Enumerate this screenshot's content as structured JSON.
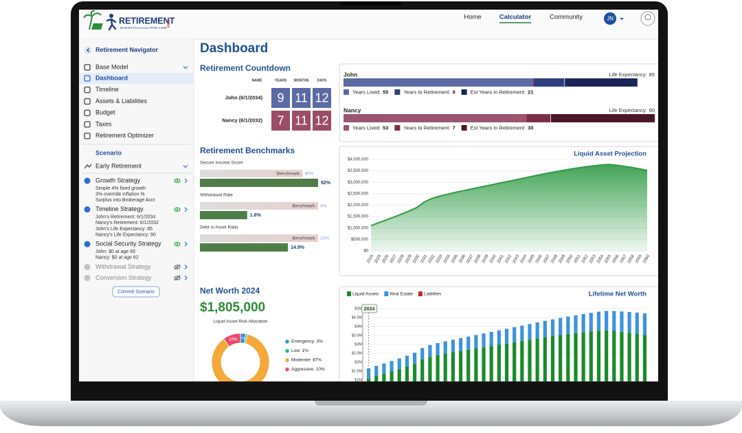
{
  "header": {
    "logo": {
      "name": "RETIREMENT",
      "domain": "BUDGETCALCULATOR.COM",
      "badge": "PRO"
    },
    "nav": [
      "Home",
      "Calculator",
      "Community"
    ],
    "user_initials": "JN"
  },
  "sidebar": {
    "title": "Retirement Navigator",
    "base_model": "Base Model",
    "menu": [
      "Dashboard",
      "Timeline",
      "Assets & Liabilities",
      "Budget",
      "Taxes",
      "Retirement Optimizer"
    ],
    "scenario_heading": "Scenario",
    "scenario": "Early Retirement",
    "strategies": [
      {
        "name": "Growth Strategy",
        "enabled": true,
        "details": [
          "Simple 4% fixed growth",
          "3% override inflation %",
          "Surplus into Brokerage Acct"
        ]
      },
      {
        "name": "Timeline Strategy",
        "enabled": true,
        "details": [
          "John's Retirement: 6/1/2034",
          "Nancy's Retirement: 6/1/2032",
          "John's Life Expectancy: 85",
          "Nancy's Life Expectancy: 90"
        ]
      },
      {
        "name": "Social Security Strategy",
        "enabled": true,
        "details": [
          "John: $0 at age 65",
          "Nancy: $0 at age 62"
        ]
      },
      {
        "name": "Withdrawal Strategy",
        "enabled": false
      },
      {
        "name": "Conversion Strategy",
        "enabled": false
      }
    ],
    "button": "Commit Scenario"
  },
  "dashboard": {
    "title": "Dashboard",
    "countdown": {
      "title": "Retirement Countdown",
      "headers": [
        "NAME",
        "YEARS",
        "MONTHS",
        "DAYS"
      ],
      "rows": [
        {
          "name": "John (6/1/2034)",
          "years": 9,
          "months": 11,
          "days": 12,
          "color": "#5b6aa3"
        },
        {
          "name": "Nancy (6/1/2032)",
          "years": 7,
          "months": 11,
          "days": 12,
          "color": "#9a4d66"
        }
      ]
    },
    "life_expectancy": {
      "label": "Life Expectancy:",
      "people": [
        {
          "name": "John",
          "life_expectancy": 85,
          "segments": [
            {
              "name": "Years Lived:",
              "value": 55,
              "color": "#5b6aa3"
            },
            {
              "name": "Years to Retirement:",
              "value": 9,
              "color": "#2f3f7e"
            },
            {
              "name": "Est Years in Retirement:",
              "value": 21,
              "color": "#1b2558"
            }
          ]
        },
        {
          "name": "Nancy",
          "life_expectancy": 90,
          "segments": [
            {
              "name": "Years Lived:",
              "value": 53,
              "color": "#9a5570"
            },
            {
              "name": "Years to Retirement:",
              "value": 7,
              "color": "#7a2e47"
            },
            {
              "name": "Est Years in Retirement:",
              "value": 30,
              "color": "#4a1829"
            }
          ]
        }
      ]
    },
    "benchmarks": {
      "title": "Retirement Benchmarks",
      "benchmark_text": "Benchmark:",
      "items": [
        {
          "label": "Secure Income Score",
          "benchmark": {
            "value": 80,
            "label": "80%"
          },
          "value": {
            "value": 92,
            "label": "92%"
          }
        },
        {
          "label": "Withdrawal Rate",
          "benchmark": {
            "value": 4,
            "label": "4%"
          },
          "value": {
            "value": 1.6,
            "label": "1.6%"
          }
        },
        {
          "label": "Debt to Asset Ratio",
          "benchmark": {
            "value": 20,
            "label": "20%"
          },
          "value": {
            "value": 14.9,
            "label": "14.9%"
          }
        }
      ]
    },
    "net_worth": {
      "title": "Net Worth 2024",
      "value": "$1,805,000"
    }
  },
  "chart_data": [
    {
      "type": "area",
      "title": "Liquid Asset Projection",
      "color": "#2e9a44",
      "categories": [
        "2024",
        "2025",
        "2026",
        "2027",
        "2028",
        "2029",
        "2030",
        "2031",
        "2032",
        "2033",
        "2034",
        "2035",
        "2036",
        "2037",
        "2038",
        "2039",
        "2040",
        "2041",
        "2042",
        "2043",
        "2044",
        "2045",
        "2046",
        "2047",
        "2048",
        "2049",
        "2050",
        "2051",
        "2052",
        "2053",
        "2054",
        "2055",
        "2056",
        "2057",
        "2058",
        "2059",
        "2060"
      ],
      "values": [
        1100000,
        1230000,
        1350000,
        1480000,
        1610000,
        1750000,
        1900000,
        2150000,
        2300000,
        2400000,
        2480000,
        2560000,
        2630000,
        2700000,
        2770000,
        2840000,
        2910000,
        2980000,
        3050000,
        3120000,
        3190000,
        3260000,
        3330000,
        3400000,
        3460000,
        3520000,
        3580000,
        3630000,
        3680000,
        3720000,
        3760000,
        3780000,
        3750000,
        3700000,
        3650000,
        3590000,
        3520000
      ],
      "ylim": [
        0,
        4000000
      ],
      "yticks": [
        {
          "value": 0,
          "label": "$0"
        },
        {
          "value": 500000,
          "label": "$500,000"
        },
        {
          "value": 1000000,
          "label": "$1,000,000"
        },
        {
          "value": 1500000,
          "label": "$1,500,000"
        },
        {
          "value": 2000000,
          "label": "$2,000,000"
        },
        {
          "value": 2500000,
          "label": "$2,500,000"
        },
        {
          "value": 3000000,
          "label": "$3,000,000"
        },
        {
          "value": 3500000,
          "label": "$3,500,000"
        },
        {
          "value": 4000000,
          "label": "$4,000,000"
        }
      ],
      "grid": true
    },
    {
      "type": "bar",
      "stacked": true,
      "title": "Lifetime Net Worth",
      "highlight_label": "2024",
      "series": [
        {
          "name": "Liquid Assets",
          "color": "#1a8a2b",
          "values": [
            1100000,
            1230000,
            1350000,
            1480000,
            1610000,
            1750000,
            1900000,
            2150000,
            2300000,
            2400000,
            2480000,
            2560000,
            2630000,
            2700000,
            2770000,
            2840000,
            2910000,
            2980000,
            3050000,
            3120000,
            3190000,
            3260000,
            3330000,
            3400000,
            3460000,
            3520000,
            3580000,
            3630000,
            3680000,
            3720000,
            3760000,
            3780000,
            3750000,
            3700000,
            3650000,
            3590000,
            3520000
          ]
        },
        {
          "name": "Real Estate",
          "color": "#3d94dc",
          "values": [
            555000,
            567000,
            580000,
            592000,
            605000,
            619000,
            632000,
            646000,
            660000,
            675000,
            690000,
            705000,
            720000,
            736000,
            752000,
            769000,
            786000,
            803000,
            821000,
            839000,
            857000,
            876000,
            895000,
            915000,
            935000,
            956000,
            977000,
            998000,
            1020000,
            1042000,
            1065000,
            1089000,
            1113000,
            1137000,
            1162000,
            1188000,
            1214000
          ]
        },
        {
          "name": "Liabilites",
          "color": "#c62a2a",
          "values": [
            0,
            0,
            0,
            0,
            0,
            0,
            0,
            0,
            0,
            0,
            0,
            0,
            0,
            0,
            0,
            0,
            0,
            0,
            0,
            0,
            0,
            0,
            0,
            0,
            0,
            0,
            0,
            0,
            0,
            0,
            0,
            0,
            0,
            0,
            0,
            0,
            0
          ]
        }
      ],
      "ylim": [
        0,
        5000000
      ],
      "yticks": [
        {
          "value": 1000000,
          "label": "$1M"
        },
        {
          "value": 1500000,
          "label": "$1.5M"
        },
        {
          "value": 2000000,
          "label": "$2M"
        },
        {
          "value": 2500000,
          "label": "$2.5M"
        },
        {
          "value": 3000000,
          "label": "$3M"
        },
        {
          "value": 3500000,
          "label": "$3.5M"
        },
        {
          "value": 4000000,
          "label": "$4M"
        },
        {
          "value": 4500000,
          "label": "$4.5M"
        },
        {
          "value": 5000000,
          "label": "$5M"
        }
      ],
      "grid": true
    },
    {
      "type": "pie",
      "title": "Liquid Asset Risk Allocation",
      "categories": [
        "Emergency: 3%",
        "Low: 1%",
        "Moderate: 87%",
        "Aggressive: 10%"
      ],
      "values": [
        3,
        1,
        87,
        10
      ],
      "value_labels": [
        "3%",
        "1%",
        "87%",
        "10%"
      ],
      "colors": [
        "#3a8fd8",
        "#2bb59c",
        "#f5a93b",
        "#ea4a6c"
      ]
    }
  ]
}
